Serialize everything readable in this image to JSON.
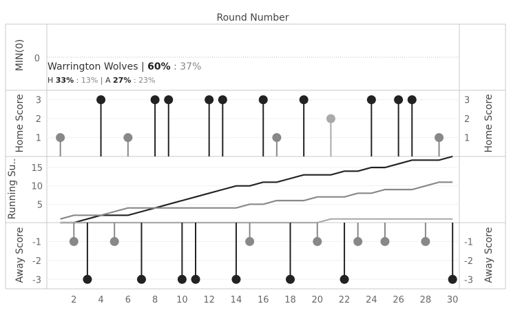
{
  "top_title": "Round Number",
  "colors": {
    "win": "#222222",
    "draw": "#aaaaaa",
    "loss": "#888888",
    "grid": "#d8d8d8",
    "frame": "#c8c8c8"
  },
  "min_panel": {
    "axis_title": "MIN(0)",
    "tick": "0",
    "team_line": {
      "name": "Warrington Wolves | ",
      "win_pct": "60%",
      "sep": " : ",
      "loss_pct": "37%"
    },
    "split_line": {
      "h_label": "H ",
      "h_win": "33%",
      "h_sep": " : ",
      "h_loss": "13%",
      "divider": "  |  ",
      "a_label": "A ",
      "a_win": "27%",
      "a_sep": " : ",
      "a_loss": "23%"
    }
  },
  "chart_data": [
    {
      "type": "scatter",
      "title": "Home Score",
      "xlabel": "Round Number",
      "ylabel": "Home Score",
      "ylim": [
        0,
        3.5
      ],
      "yticks": [
        1,
        2,
        3
      ],
      "points": [
        {
          "x": 1,
          "y": 1,
          "result": "loss"
        },
        {
          "x": 4,
          "y": 3,
          "result": "win"
        },
        {
          "x": 6,
          "y": 1,
          "result": "loss"
        },
        {
          "x": 8,
          "y": 3,
          "result": "win"
        },
        {
          "x": 9,
          "y": 3,
          "result": "win"
        },
        {
          "x": 12,
          "y": 3,
          "result": "win"
        },
        {
          "x": 13,
          "y": 3,
          "result": "win"
        },
        {
          "x": 16,
          "y": 3,
          "result": "win"
        },
        {
          "x": 17,
          "y": 1,
          "result": "loss"
        },
        {
          "x": 19,
          "y": 3,
          "result": "win"
        },
        {
          "x": 21,
          "y": 2,
          "result": "draw"
        },
        {
          "x": 24,
          "y": 3,
          "result": "win"
        },
        {
          "x": 26,
          "y": 3,
          "result": "win"
        },
        {
          "x": 27,
          "y": 3,
          "result": "win"
        },
        {
          "x": 29,
          "y": 1,
          "result": "loss"
        }
      ]
    },
    {
      "type": "line",
      "title": "Running Su..",
      "xlabel": "Round Number",
      "ylabel": "Running Su..",
      "ylim": [
        0,
        18
      ],
      "yticks": [
        5,
        10,
        15
      ],
      "x": [
        1,
        2,
        3,
        4,
        5,
        6,
        7,
        8,
        9,
        10,
        11,
        12,
        13,
        14,
        15,
        16,
        17,
        18,
        19,
        20,
        21,
        22,
        23,
        24,
        25,
        26,
        27,
        28,
        29,
        30
      ],
      "series": [
        {
          "result": "win",
          "values": [
            0,
            0,
            1,
            2,
            2,
            2,
            3,
            4,
            5,
            6,
            7,
            8,
            9,
            10,
            10,
            11,
            11,
            12,
            13,
            13,
            13,
            14,
            14,
            15,
            15,
            16,
            17,
            17,
            17,
            18
          ]
        },
        {
          "result": "loss",
          "values": [
            1,
            2,
            2,
            2,
            3,
            4,
            4,
            4,
            4,
            4,
            4,
            4,
            4,
            4,
            5,
            5,
            6,
            6,
            6,
            7,
            7,
            7,
            8,
            8,
            9,
            9,
            9,
            10,
            11,
            11
          ]
        },
        {
          "result": "draw",
          "values": [
            0,
            0,
            0,
            0,
            0,
            0,
            0,
            0,
            0,
            0,
            0,
            0,
            0,
            0,
            0,
            0,
            0,
            0,
            0,
            0,
            1,
            1,
            1,
            1,
            1,
            1,
            1,
            1,
            1,
            1
          ]
        }
      ]
    },
    {
      "type": "scatter",
      "title": "Away Score",
      "xlabel": "Round Number",
      "ylabel": "Away Score",
      "ylim": [
        -3.5,
        0
      ],
      "yticks": [
        -1,
        -2,
        -3
      ],
      "points": [
        {
          "x": 2,
          "y": -1,
          "result": "loss"
        },
        {
          "x": 3,
          "y": -3,
          "result": "win"
        },
        {
          "x": 5,
          "y": -1,
          "result": "loss"
        },
        {
          "x": 7,
          "y": -3,
          "result": "win"
        },
        {
          "x": 10,
          "y": -3,
          "result": "win"
        },
        {
          "x": 11,
          "y": -3,
          "result": "win"
        },
        {
          "x": 14,
          "y": -3,
          "result": "win"
        },
        {
          "x": 15,
          "y": -1,
          "result": "loss"
        },
        {
          "x": 18,
          "y": -3,
          "result": "win"
        },
        {
          "x": 20,
          "y": -1,
          "result": "loss"
        },
        {
          "x": 22,
          "y": -3,
          "result": "win"
        },
        {
          "x": 23,
          "y": -1,
          "result": "loss"
        },
        {
          "x": 25,
          "y": -1,
          "result": "loss"
        },
        {
          "x": 28,
          "y": -1,
          "result": "loss"
        },
        {
          "x": 30,
          "y": -3,
          "result": "win"
        }
      ]
    }
  ],
  "x_axis": {
    "title": "Round Number",
    "ticks": [
      2,
      4,
      6,
      8,
      10,
      12,
      14,
      16,
      18,
      20,
      22,
      24,
      26,
      28,
      30
    ],
    "range": [
      0,
      30.5
    ]
  }
}
